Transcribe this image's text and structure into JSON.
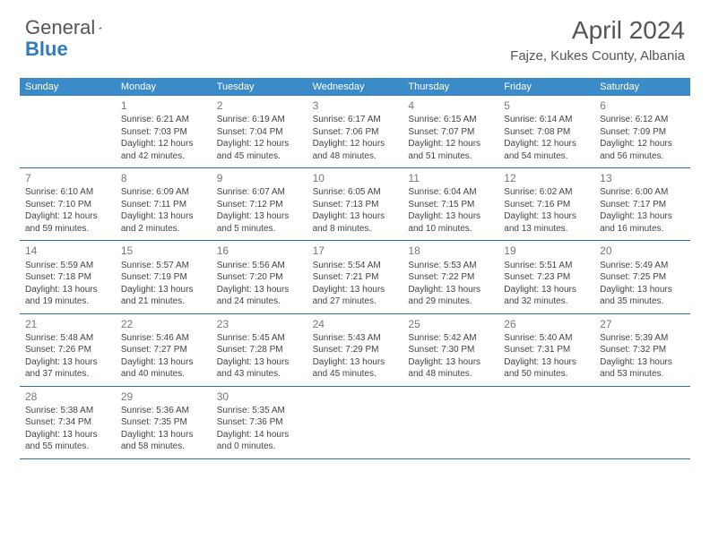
{
  "logo": {
    "text1": "General",
    "text2": "Blue"
  },
  "title": "April 2024",
  "location": "Fajze, Kukes County, Albania",
  "colors": {
    "header_bg": "#3b8bc9",
    "header_text": "#ffffff",
    "border": "#2f6fa8",
    "daynum": "#777777",
    "body_text": "#444444"
  },
  "weekdays": [
    "Sunday",
    "Monday",
    "Tuesday",
    "Wednesday",
    "Thursday",
    "Friday",
    "Saturday"
  ],
  "weeks": [
    [
      null,
      {
        "n": "1",
        "sr": "Sunrise: 6:21 AM",
        "ss": "Sunset: 7:03 PM",
        "dl": "Daylight: 12 hours and 42 minutes."
      },
      {
        "n": "2",
        "sr": "Sunrise: 6:19 AM",
        "ss": "Sunset: 7:04 PM",
        "dl": "Daylight: 12 hours and 45 minutes."
      },
      {
        "n": "3",
        "sr": "Sunrise: 6:17 AM",
        "ss": "Sunset: 7:06 PM",
        "dl": "Daylight: 12 hours and 48 minutes."
      },
      {
        "n": "4",
        "sr": "Sunrise: 6:15 AM",
        "ss": "Sunset: 7:07 PM",
        "dl": "Daylight: 12 hours and 51 minutes."
      },
      {
        "n": "5",
        "sr": "Sunrise: 6:14 AM",
        "ss": "Sunset: 7:08 PM",
        "dl": "Daylight: 12 hours and 54 minutes."
      },
      {
        "n": "6",
        "sr": "Sunrise: 6:12 AM",
        "ss": "Sunset: 7:09 PM",
        "dl": "Daylight: 12 hours and 56 minutes."
      }
    ],
    [
      {
        "n": "7",
        "sr": "Sunrise: 6:10 AM",
        "ss": "Sunset: 7:10 PM",
        "dl": "Daylight: 12 hours and 59 minutes."
      },
      {
        "n": "8",
        "sr": "Sunrise: 6:09 AM",
        "ss": "Sunset: 7:11 PM",
        "dl": "Daylight: 13 hours and 2 minutes."
      },
      {
        "n": "9",
        "sr": "Sunrise: 6:07 AM",
        "ss": "Sunset: 7:12 PM",
        "dl": "Daylight: 13 hours and 5 minutes."
      },
      {
        "n": "10",
        "sr": "Sunrise: 6:05 AM",
        "ss": "Sunset: 7:13 PM",
        "dl": "Daylight: 13 hours and 8 minutes."
      },
      {
        "n": "11",
        "sr": "Sunrise: 6:04 AM",
        "ss": "Sunset: 7:15 PM",
        "dl": "Daylight: 13 hours and 10 minutes."
      },
      {
        "n": "12",
        "sr": "Sunrise: 6:02 AM",
        "ss": "Sunset: 7:16 PM",
        "dl": "Daylight: 13 hours and 13 minutes."
      },
      {
        "n": "13",
        "sr": "Sunrise: 6:00 AM",
        "ss": "Sunset: 7:17 PM",
        "dl": "Daylight: 13 hours and 16 minutes."
      }
    ],
    [
      {
        "n": "14",
        "sr": "Sunrise: 5:59 AM",
        "ss": "Sunset: 7:18 PM",
        "dl": "Daylight: 13 hours and 19 minutes."
      },
      {
        "n": "15",
        "sr": "Sunrise: 5:57 AM",
        "ss": "Sunset: 7:19 PM",
        "dl": "Daylight: 13 hours and 21 minutes."
      },
      {
        "n": "16",
        "sr": "Sunrise: 5:56 AM",
        "ss": "Sunset: 7:20 PM",
        "dl": "Daylight: 13 hours and 24 minutes."
      },
      {
        "n": "17",
        "sr": "Sunrise: 5:54 AM",
        "ss": "Sunset: 7:21 PM",
        "dl": "Daylight: 13 hours and 27 minutes."
      },
      {
        "n": "18",
        "sr": "Sunrise: 5:53 AM",
        "ss": "Sunset: 7:22 PM",
        "dl": "Daylight: 13 hours and 29 minutes."
      },
      {
        "n": "19",
        "sr": "Sunrise: 5:51 AM",
        "ss": "Sunset: 7:23 PM",
        "dl": "Daylight: 13 hours and 32 minutes."
      },
      {
        "n": "20",
        "sr": "Sunrise: 5:49 AM",
        "ss": "Sunset: 7:25 PM",
        "dl": "Daylight: 13 hours and 35 minutes."
      }
    ],
    [
      {
        "n": "21",
        "sr": "Sunrise: 5:48 AM",
        "ss": "Sunset: 7:26 PM",
        "dl": "Daylight: 13 hours and 37 minutes."
      },
      {
        "n": "22",
        "sr": "Sunrise: 5:46 AM",
        "ss": "Sunset: 7:27 PM",
        "dl": "Daylight: 13 hours and 40 minutes."
      },
      {
        "n": "23",
        "sr": "Sunrise: 5:45 AM",
        "ss": "Sunset: 7:28 PM",
        "dl": "Daylight: 13 hours and 43 minutes."
      },
      {
        "n": "24",
        "sr": "Sunrise: 5:43 AM",
        "ss": "Sunset: 7:29 PM",
        "dl": "Daylight: 13 hours and 45 minutes."
      },
      {
        "n": "25",
        "sr": "Sunrise: 5:42 AM",
        "ss": "Sunset: 7:30 PM",
        "dl": "Daylight: 13 hours and 48 minutes."
      },
      {
        "n": "26",
        "sr": "Sunrise: 5:40 AM",
        "ss": "Sunset: 7:31 PM",
        "dl": "Daylight: 13 hours and 50 minutes."
      },
      {
        "n": "27",
        "sr": "Sunrise: 5:39 AM",
        "ss": "Sunset: 7:32 PM",
        "dl": "Daylight: 13 hours and 53 minutes."
      }
    ],
    [
      {
        "n": "28",
        "sr": "Sunrise: 5:38 AM",
        "ss": "Sunset: 7:34 PM",
        "dl": "Daylight: 13 hours and 55 minutes."
      },
      {
        "n": "29",
        "sr": "Sunrise: 5:36 AM",
        "ss": "Sunset: 7:35 PM",
        "dl": "Daylight: 13 hours and 58 minutes."
      },
      {
        "n": "30",
        "sr": "Sunrise: 5:35 AM",
        "ss": "Sunset: 7:36 PM",
        "dl": "Daylight: 14 hours and 0 minutes."
      },
      null,
      null,
      null,
      null
    ]
  ]
}
